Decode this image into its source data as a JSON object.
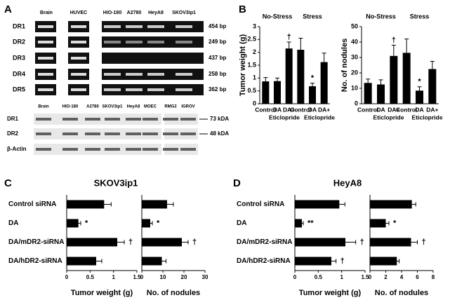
{
  "panel_a": {
    "label": "A",
    "gel_lanes": [
      "Brain",
      "HUVEC",
      "HIO-180",
      "A2780",
      "HeyA8",
      "SKOV3ip1"
    ],
    "gel_rows": [
      "DR1",
      "DR2",
      "DR3",
      "DR4",
      "DR5"
    ],
    "gel_sizes": [
      "454 bp",
      "249 bp",
      "437 bp",
      "258 bp",
      "362 bp"
    ],
    "blot_lanes": [
      "Brain",
      "HIO-180",
      "A2780",
      "SKOV3ip1",
      "HeyA8",
      "MOEC",
      "RMG2",
      "IGROV"
    ],
    "blot_rows": [
      "DR1",
      "DR2",
      "β-Actin"
    ],
    "blot_sizes": [
      "73 kDA",
      "48 kDA"
    ]
  },
  "chart_data": [
    {
      "type": "bar",
      "orientation": "vertical",
      "label": "B",
      "ylabel": "Tumor weight (g)",
      "categories": [
        "Control",
        "DA",
        "DA+",
        "Control",
        "DA",
        "DA+"
      ],
      "x_sublabels": [
        null,
        null,
        "Eticlopride",
        null,
        null,
        "Eticlopride"
      ],
      "group_labels": [
        "No-Stress",
        "Stress"
      ],
      "values": [
        0.87,
        0.88,
        2.15,
        2.1,
        0.68,
        1.62
      ],
      "errors": [
        0.15,
        0.12,
        0.25,
        0.45,
        0.12,
        0.35
      ],
      "markers": [
        null,
        null,
        "†",
        null,
        "*",
        null
      ],
      "color": "#000000",
      "ylim": [
        0,
        3
      ],
      "yticks": [
        0,
        0.5,
        1,
        1.5,
        2,
        2.5,
        3
      ]
    },
    {
      "type": "bar",
      "orientation": "vertical",
      "ylabel": "No. of nodules",
      "categories": [
        "Control",
        "DA",
        "DA+",
        "Control",
        "DA",
        "DA+"
      ],
      "x_sublabels": [
        null,
        null,
        "Eticlopride",
        null,
        null,
        "Eticlopride"
      ],
      "group_labels": [
        "No-Stress",
        "Stress"
      ],
      "values": [
        13.5,
        12.5,
        31,
        33,
        8.5,
        22.5
      ],
      "errors": [
        2.5,
        3,
        7,
        9,
        2.5,
        5
      ],
      "markers": [
        null,
        null,
        "†",
        null,
        "*",
        null
      ],
      "color": "#000000",
      "ylim": [
        0,
        50
      ],
      "yticks": [
        0,
        10,
        20,
        30,
        40,
        50
      ]
    },
    {
      "type": "bar",
      "orientation": "horizontal",
      "label": "C",
      "title": "SKOV3ip1",
      "xlabel": "Tumor weight (g)",
      "categories": [
        "Control siRNA",
        "DA",
        "DA/mDR2-siRNA",
        "DA/hDR2-siRNA"
      ],
      "values": [
        0.8,
        0.25,
        1.08,
        0.63
      ],
      "errors": [
        0.15,
        0.05,
        0.15,
        0.12
      ],
      "markers": [
        null,
        "*",
        "†",
        null
      ],
      "color": "#000000",
      "xlim": [
        0,
        1.5
      ],
      "xticks": [
        0,
        0.5,
        1,
        1.5
      ]
    },
    {
      "type": "bar",
      "orientation": "horizontal",
      "xlabel": "No. of nodules",
      "values": [
        12,
        4,
        19,
        9.5
      ],
      "errors": [
        3,
        1,
        3,
        2
      ],
      "markers": [
        null,
        "*",
        "†",
        null
      ],
      "color": "#000000",
      "xlim": [
        0,
        30
      ],
      "xticks": [
        0,
        10,
        20,
        30
      ]
    },
    {
      "type": "bar",
      "orientation": "horizontal",
      "label": "D",
      "title": "HeyA8",
      "xlabel": "Tumor weight (g)",
      "categories": [
        "Control siRNA",
        "DA",
        "DA/mDR2-siRNA",
        "DA/hDR2-siRNA"
      ],
      "values": [
        0.95,
        0.15,
        1.08,
        0.78
      ],
      "errors": [
        0.12,
        0.03,
        0.22,
        0.1
      ],
      "markers": [
        null,
        "**",
        "†",
        "†"
      ],
      "color": "#000000",
      "xlim": [
        0,
        1.5
      ],
      "xticks": [
        0,
        0.5,
        1,
        1.5
      ]
    },
    {
      "type": "bar",
      "orientation": "horizontal",
      "xlabel": "No. of nodules",
      "values": [
        5.3,
        2,
        5.2,
        3.4
      ],
      "errors": [
        0.5,
        0.4,
        0.8,
        0.3
      ],
      "markers": [
        null,
        "*",
        "†",
        null
      ],
      "color": "#000000",
      "xlim": [
        0,
        8
      ],
      "xticks": [
        0,
        2,
        4,
        6,
        8
      ]
    }
  ]
}
